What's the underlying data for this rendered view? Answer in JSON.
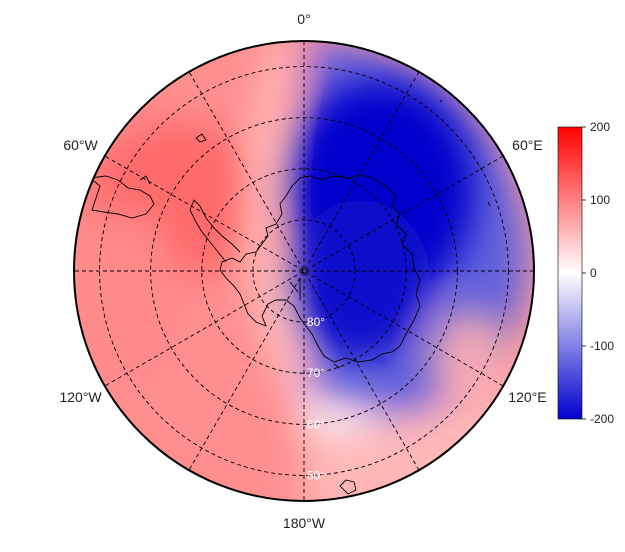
{
  "map": {
    "projection": "south-polar-stereographic",
    "longitude_labels": [
      {
        "lon": 0,
        "text": "0°"
      },
      {
        "lon": 60,
        "text": "60°E"
      },
      {
        "lon": 120,
        "text": "120°E"
      },
      {
        "lon": 180,
        "text": "180°W"
      },
      {
        "lon": -120,
        "text": "120°W"
      },
      {
        "lon": -60,
        "text": "60°W"
      }
    ],
    "latitude_labels": [
      {
        "lat": -80,
        "text": "80°"
      },
      {
        "lat": -70,
        "text": "70°"
      },
      {
        "lat": -60,
        "text": "60°"
      },
      {
        "lat": -50,
        "text": "50°"
      }
    ],
    "field_pattern": "positive anomaly over western hemisphere (Weddell/Bellingshausen/Pacific sector), negative anomaly over East Antarctica and Indian Ocean sector",
    "colors": {
      "high": "#ff0000",
      "mid": "#ffffff",
      "low": "#0000cc",
      "coastline": "#000000",
      "graticule": "#000000"
    }
  },
  "colorbar": {
    "min": -200,
    "max": 200,
    "ticks": [
      {
        "value": 200,
        "text": "200"
      },
      {
        "value": 100,
        "text": "100"
      },
      {
        "value": 0,
        "text": "0"
      },
      {
        "value": -100,
        "text": "-100"
      },
      {
        "value": -200,
        "text": "-200"
      }
    ]
  }
}
